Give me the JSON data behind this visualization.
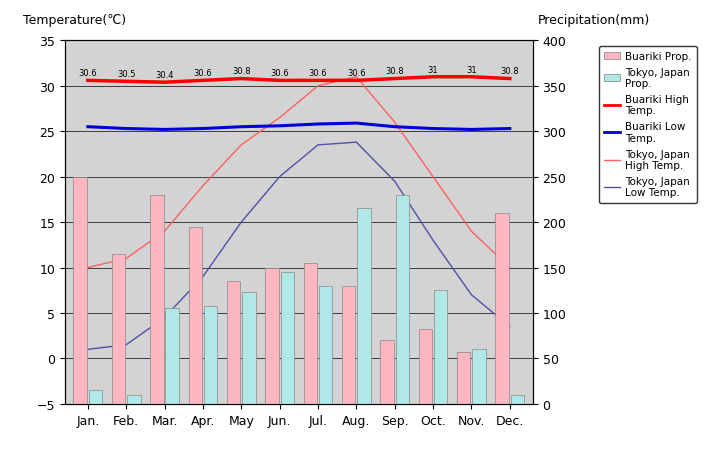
{
  "months": [
    "Jan.",
    "Feb.",
    "Mar.",
    "Apr.",
    "May",
    "Jun.",
    "Jul.",
    "Aug.",
    "Sep.",
    "Oct.",
    "Nov.",
    "Dec."
  ],
  "buariki_precip_mm": [
    250,
    165,
    230,
    195,
    135,
    150,
    155,
    130,
    70,
    82,
    57,
    210
  ],
  "tokyo_precip_mm": [
    15,
    10,
    105,
    108,
    123,
    145,
    130,
    215,
    230,
    125,
    60,
    10
  ],
  "buariki_high": [
    30.6,
    30.5,
    30.4,
    30.6,
    30.8,
    30.6,
    30.6,
    30.6,
    30.8,
    31.0,
    31.0,
    30.8
  ],
  "buariki_low": [
    25.5,
    25.3,
    25.2,
    25.3,
    25.5,
    25.6,
    25.8,
    25.9,
    25.5,
    25.3,
    25.2,
    25.3
  ],
  "tokyo_high": [
    10.0,
    11.0,
    14.0,
    19.0,
    23.5,
    26.5,
    30.0,
    31.0,
    26.0,
    20.0,
    14.0,
    10.0
  ],
  "tokyo_low": [
    1.0,
    1.5,
    4.5,
    9.0,
    15.0,
    20.0,
    23.5,
    23.8,
    19.5,
    13.0,
    7.0,
    3.5
  ],
  "buariki_high_labels": [
    "30.6",
    "30.5",
    "30.4",
    "30.6",
    "30.8",
    "30.6",
    "30.6",
    "30.6",
    "30.8",
    "31",
    "31",
    "30.8"
  ],
  "ylim_temp": [
    -5,
    35
  ],
  "ylim_precip": [
    0,
    400
  ],
  "ylabel_left": "Temperature(℃)",
  "ylabel_right": "Precipitation(mm)",
  "bg_color": "#d3d3d3",
  "bar_color_buariki": "#ffb6c1",
  "bar_color_tokyo": "#b0e8e8",
  "line_buariki_high_color": "#ff0000",
  "line_buariki_low_color": "#0000dd",
  "line_tokyo_high_color": "#ff6060",
  "line_tokyo_low_color": "#5050aa",
  "bar_width": 0.35,
  "bar_gap": 0.05
}
